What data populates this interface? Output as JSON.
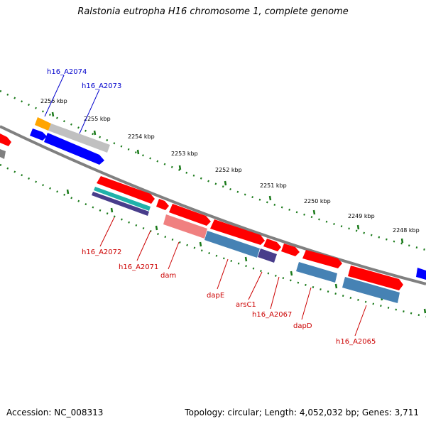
{
  "title": "Ralstonia eutropha H16 chromosome 1, complete genome",
  "accession": "Accession: NC_008313",
  "topology": "Topology: circular; Length: 4,052,032 bp; Genes: 3,711",
  "ticks": [
    "2256 kbp",
    "2255 kbp",
    "2254 kbp",
    "2253 kbp",
    "2252 kbp",
    "2251 kbp",
    "2250 kbp",
    "2249 kbp",
    "2248 kbp"
  ],
  "genes_top": [
    "h16_A2074",
    "h16_A2073"
  ],
  "genes_bottom": [
    "h16_A2072",
    "h16_A2071",
    "dam",
    "dapE",
    "arsC1",
    "h16_A2067",
    "dapD",
    "h16_A2065"
  ],
  "colors": {
    "backbone": "#808080",
    "ticks": "#1a7a1a",
    "cds_red": "#ff0000",
    "cds_blue": "#4682b4",
    "cds_pink": "#f08080",
    "cds_purple": "#483d8b",
    "cds_orange": "#ffa500",
    "cds_gray": "#c0c0c0",
    "cds_navy": "#0000ff",
    "cds_cyan": "#20b2aa",
    "label_blue": "#0000cc",
    "label_red": "#cc0000"
  }
}
